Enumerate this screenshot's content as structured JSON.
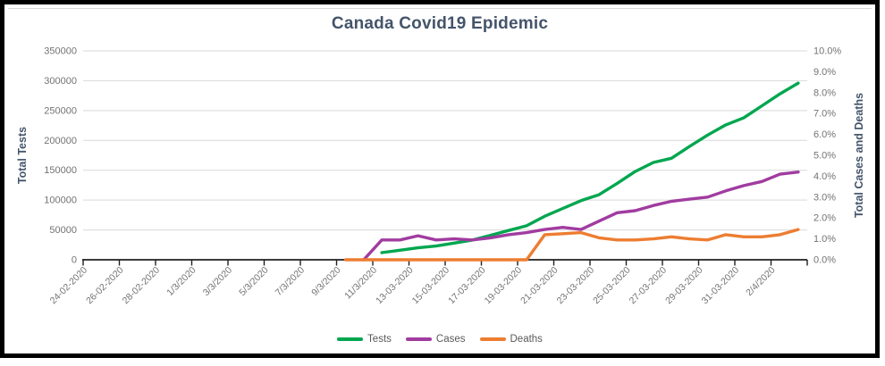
{
  "chart_data": {
    "type": "line",
    "title": "Canada Covid19 Epidemic",
    "grid": true,
    "legend_position": "bottom",
    "left_axis": {
      "title": "Total Tests",
      "min": 0,
      "max": 350000,
      "tick_interval": 50000,
      "ticks": [
        "350000",
        "300000",
        "250000",
        "200000",
        "150000",
        "100000",
        "50000",
        "0"
      ]
    },
    "right_axis": {
      "title": "Total Cases and Deaths",
      "min": 0.0,
      "max": 10.0,
      "tick_interval": 1.0,
      "ticks": [
        "10.0%",
        "9.0%",
        "8.0%",
        "7.0%",
        "6.0%",
        "5.0%",
        "4.0%",
        "3.0%",
        "2.0%",
        "1.0%",
        "0.0%"
      ]
    },
    "x_axis": {
      "n_points": 40,
      "ticks_every": 2,
      "labels": [
        "24-02-2020",
        "26-02-2020",
        "28-02-2020",
        "1/3/2020",
        "3/3/2020",
        "5/3/2020",
        "7/3/2020",
        "9/3/2020",
        "11/3/2020",
        "13-03-2020",
        "15-03-2020",
        "17-03-2020",
        "19-03-2020",
        "21-03-2020",
        "23-03-2020",
        "25-03-2020",
        "27-03-2020",
        "29-03-2020",
        "31-03-2020",
        "2/4/2020"
      ]
    },
    "series": [
      {
        "name": "Tests",
        "axis": "left",
        "color": "#00a64f",
        "values": [
          null,
          null,
          null,
          null,
          null,
          null,
          null,
          null,
          null,
          null,
          null,
          null,
          null,
          null,
          null,
          null,
          12000,
          16000,
          20000,
          23000,
          28000,
          33000,
          41000,
          49000,
          57000,
          73000,
          86000,
          99000,
          109000,
          128000,
          148000,
          163000,
          170000,
          190000,
          209000,
          226000,
          238000,
          258000,
          278000,
          296000
        ]
      },
      {
        "name": "Cases",
        "axis": "right",
        "color": "#a03ca0",
        "values": [
          null,
          null,
          null,
          null,
          null,
          null,
          null,
          null,
          null,
          null,
          null,
          null,
          null,
          null,
          null,
          0,
          0.95,
          0.95,
          1.15,
          0.95,
          1.0,
          0.95,
          1.05,
          1.2,
          1.3,
          1.45,
          1.55,
          1.45,
          1.85,
          2.25,
          2.35,
          2.6,
          2.8,
          2.9,
          3.0,
          3.3,
          3.55,
          3.75,
          4.1,
          4.2
        ]
      },
      {
        "name": "Deaths",
        "axis": "right",
        "color": "#ed7d31",
        "values": [
          null,
          null,
          null,
          null,
          null,
          null,
          null,
          null,
          null,
          null,
          null,
          null,
          null,
          null,
          0,
          0,
          0,
          0,
          0,
          0,
          0,
          0,
          0,
          0,
          0,
          1.2,
          1.25,
          1.3,
          1.05,
          0.95,
          0.95,
          1.0,
          1.1,
          1.0,
          0.95,
          1.2,
          1.1,
          1.1,
          1.2,
          1.45
        ]
      }
    ]
  },
  "styles": {
    "title_color": "#44546a",
    "axis_title_color": "#44546a",
    "tick_label_color": "#737373",
    "gridline_color": "#d9d9d9",
    "axis_line_color": "#1f1f1f",
    "legend_text_color": "#595959",
    "frame_border_color": "#000000",
    "background": "#ffffff"
  }
}
